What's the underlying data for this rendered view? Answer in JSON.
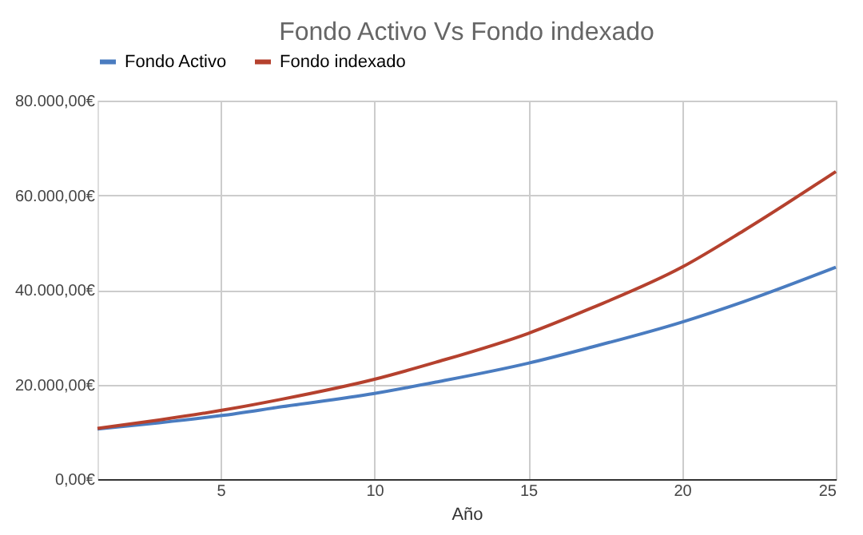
{
  "chart_data": {
    "type": "line",
    "title": "Fondo Activo Vs Fondo indexado",
    "xlabel": "Año",
    "x": [
      1,
      3,
      5,
      7,
      10,
      12,
      15,
      17,
      20,
      22,
      25
    ],
    "series": [
      {
        "name": "Fondo Activo",
        "color": "#4a7cc0",
        "values": [
          10600,
          11900,
          13400,
          15300,
          18100,
          20500,
          24500,
          27800,
          33200,
          37500,
          44800
        ]
      },
      {
        "name": "Fondo indexado",
        "color": "#b5412e",
        "values": [
          10700,
          12500,
          14500,
          16900,
          21100,
          24700,
          30800,
          36000,
          44800,
          52500,
          65000
        ]
      }
    ],
    "xlim": [
      1,
      25
    ],
    "xticks": [
      5,
      10,
      15,
      20,
      25
    ],
    "ylim": [
      0,
      80000
    ],
    "yticks": [
      {
        "value": 0,
        "label": "0,00€"
      },
      {
        "value": 20000,
        "label": "20.000,00€"
      },
      {
        "value": 40000,
        "label": "40.000,00€"
      },
      {
        "value": 60000,
        "label": "60.000,00€"
      },
      {
        "value": 80000,
        "label": "80.000,00€"
      }
    ],
    "grid": true,
    "legend": "top",
    "marker": "none",
    "line_style": "solid"
  }
}
